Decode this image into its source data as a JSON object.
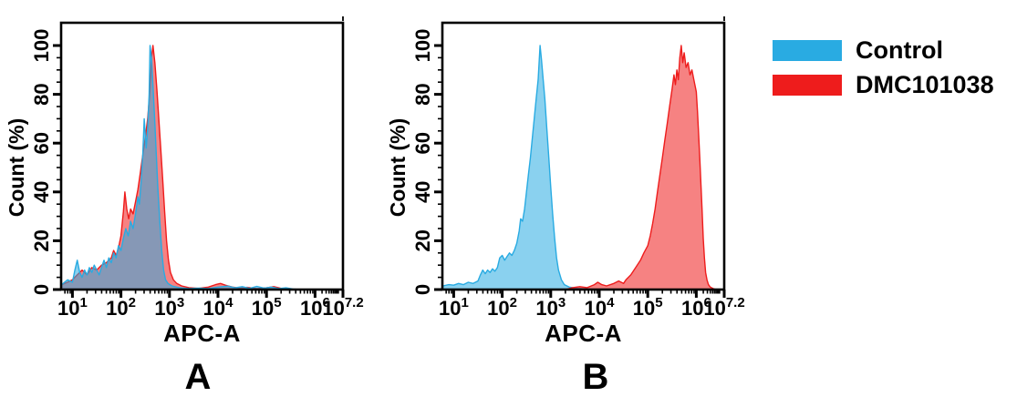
{
  "figure": {
    "background": "#ffffff",
    "panels": [
      {
        "label": "A"
      },
      {
        "label": "B"
      }
    ]
  },
  "legend": {
    "position": "top-right",
    "items": [
      {
        "label": "Control",
        "color": "#29ABE2",
        "swatch": "blue-rectangle"
      },
      {
        "label": "DMC101038",
        "color": "#EE1C1C",
        "swatch": "red-rectangle"
      }
    ]
  },
  "chart_data": [
    {
      "type": "area",
      "panel": "A",
      "title": "",
      "xlabel": "APC-A",
      "ylabel": "Count  (%)",
      "x_scale": "log10",
      "xlim_log": [
        0.78,
        7.2
      ],
      "ylim": [
        0,
        100
      ],
      "grid": false,
      "x_ticks": [
        {
          "log": 1,
          "label_base": "10",
          "label_exp": "1"
        },
        {
          "log": 2,
          "label_base": "10",
          "label_exp": "2"
        },
        {
          "log": 3,
          "label_base": "10",
          "label_exp": "3"
        },
        {
          "log": 4,
          "label_base": "10",
          "label_exp": "4"
        },
        {
          "log": 5,
          "label_base": "10",
          "label_exp": "5"
        },
        {
          "log": 6,
          "label_base": "10",
          "label_exp": "6"
        },
        {
          "log": 7.2,
          "label_base": "10",
          "label_exp": "7.2"
        }
      ],
      "y_ticks": [
        {
          "value": 0,
          "label": "0"
        },
        {
          "value": 20,
          "label": "20"
        },
        {
          "value": 40,
          "label": "40"
        },
        {
          "value": 60,
          "label": "60"
        },
        {
          "value": 80,
          "label": "80"
        },
        {
          "value": 100,
          "label": "100"
        }
      ],
      "series": [
        {
          "name": "DMC101038",
          "color": "#EE1C1C",
          "fill_opacity": 0.55,
          "points_logx_pct": [
            [
              0.78,
              2
            ],
            [
              0.9,
              3
            ],
            [
              1.0,
              4
            ],
            [
              1.1,
              6
            ],
            [
              1.2,
              8
            ],
            [
              1.3,
              6
            ],
            [
              1.4,
              9
            ],
            [
              1.5,
              8
            ],
            [
              1.6,
              10
            ],
            [
              1.7,
              11
            ],
            [
              1.8,
              13
            ],
            [
              1.85,
              16
            ],
            [
              1.9,
              14
            ],
            [
              1.95,
              17
            ],
            [
              2.0,
              22
            ],
            [
              2.05,
              32
            ],
            [
              2.08,
              40
            ],
            [
              2.12,
              33
            ],
            [
              2.16,
              29
            ],
            [
              2.2,
              33
            ],
            [
              2.25,
              31
            ],
            [
              2.3,
              36
            ],
            [
              2.35,
              41
            ],
            [
              2.4,
              48
            ],
            [
              2.45,
              55
            ],
            [
              2.5,
              62
            ],
            [
              2.55,
              70
            ],
            [
              2.6,
              82
            ],
            [
              2.63,
              95
            ],
            [
              2.66,
              100
            ],
            [
              2.7,
              93
            ],
            [
              2.74,
              82
            ],
            [
              2.78,
              70
            ],
            [
              2.82,
              58
            ],
            [
              2.86,
              45
            ],
            [
              2.9,
              32
            ],
            [
              2.94,
              20
            ],
            [
              2.98,
              12
            ],
            [
              3.02,
              7
            ],
            [
              3.08,
              4
            ],
            [
              3.15,
              2.5
            ],
            [
              3.25,
              1.5
            ],
            [
              3.4,
              0.8
            ],
            [
              3.6,
              0.5
            ],
            [
              3.8,
              1
            ],
            [
              3.95,
              2
            ],
            [
              4.05,
              2.5
            ],
            [
              4.15,
              1.8
            ],
            [
              4.3,
              1
            ],
            [
              4.45,
              0.6
            ],
            [
              4.6,
              0.9
            ],
            [
              4.8,
              0.4
            ],
            [
              5.0,
              0.7
            ],
            [
              5.15,
              1.2
            ],
            [
              5.3,
              0.5
            ],
            [
              5.5,
              0
            ],
            [
              7.2,
              0
            ]
          ]
        },
        {
          "name": "Control",
          "color": "#29ABE2",
          "fill_opacity": 0.55,
          "points_logx_pct": [
            [
              0.78,
              2
            ],
            [
              0.9,
              4
            ],
            [
              1.0,
              3
            ],
            [
              1.05,
              8
            ],
            [
              1.1,
              12
            ],
            [
              1.15,
              7
            ],
            [
              1.2,
              5
            ],
            [
              1.25,
              8
            ],
            [
              1.3,
              6
            ],
            [
              1.35,
              9
            ],
            [
              1.4,
              7
            ],
            [
              1.45,
              10
            ],
            [
              1.5,
              8
            ],
            [
              1.55,
              6
            ],
            [
              1.6,
              9
            ],
            [
              1.65,
              12
            ],
            [
              1.7,
              9
            ],
            [
              1.75,
              13
            ],
            [
              1.8,
              11
            ],
            [
              1.85,
              15
            ],
            [
              1.9,
              13
            ],
            [
              1.95,
              18
            ],
            [
              2.0,
              16
            ],
            [
              2.05,
              21
            ],
            [
              2.1,
              25
            ],
            [
              2.15,
              22
            ],
            [
              2.2,
              28
            ],
            [
              2.25,
              25
            ],
            [
              2.3,
              31
            ],
            [
              2.35,
              38
            ],
            [
              2.38,
              35
            ],
            [
              2.42,
              45
            ],
            [
              2.45,
              55
            ],
            [
              2.48,
              70
            ],
            [
              2.5,
              64
            ],
            [
              2.52,
              58
            ],
            [
              2.55,
              66
            ],
            [
              2.58,
              80
            ],
            [
              2.6,
              100
            ],
            [
              2.63,
              95
            ],
            [
              2.66,
              84
            ],
            [
              2.7,
              68
            ],
            [
              2.73,
              55
            ],
            [
              2.76,
              42
            ],
            [
              2.8,
              28
            ],
            [
              2.84,
              16
            ],
            [
              2.88,
              8
            ],
            [
              2.92,
              4
            ],
            [
              2.97,
              2.5
            ],
            [
              3.05,
              1.5
            ],
            [
              3.2,
              0.8
            ],
            [
              3.4,
              0.4
            ],
            [
              3.6,
              0.6
            ],
            [
              3.8,
              0.4
            ],
            [
              4.0,
              1
            ],
            [
              4.2,
              1.4
            ],
            [
              4.35,
              0.7
            ],
            [
              4.5,
              1.2
            ],
            [
              4.65,
              0.5
            ],
            [
              4.8,
              1.3
            ],
            [
              4.95,
              0.6
            ],
            [
              5.1,
              1
            ],
            [
              5.25,
              0.4
            ],
            [
              5.4,
              0.7
            ],
            [
              5.55,
              0.2
            ],
            [
              5.7,
              0
            ],
            [
              7.2,
              0
            ]
          ]
        }
      ]
    },
    {
      "type": "area",
      "panel": "B",
      "title": "",
      "xlabel": "APC-A",
      "ylabel": "Count  (%)",
      "x_scale": "log10",
      "xlim_log": [
        0.78,
        7.2
      ],
      "ylim": [
        0,
        100
      ],
      "grid": false,
      "x_ticks": [
        {
          "log": 1,
          "label_base": "10",
          "label_exp": "1"
        },
        {
          "log": 2,
          "label_base": "10",
          "label_exp": "2"
        },
        {
          "log": 3,
          "label_base": "10",
          "label_exp": "3"
        },
        {
          "log": 4,
          "label_base": "10",
          "label_exp": "4"
        },
        {
          "log": 5,
          "label_base": "10",
          "label_exp": "5"
        },
        {
          "log": 6,
          "label_base": "10",
          "label_exp": "6"
        },
        {
          "log": 7.2,
          "label_base": "10",
          "label_exp": "7.2"
        }
      ],
      "y_ticks": [
        {
          "value": 0,
          "label": "0"
        },
        {
          "value": 20,
          "label": "20"
        },
        {
          "value": 40,
          "label": "40"
        },
        {
          "value": 60,
          "label": "60"
        },
        {
          "value": 80,
          "label": "80"
        },
        {
          "value": 100,
          "label": "100"
        }
      ],
      "series": [
        {
          "name": "Control",
          "color": "#29ABE2",
          "fill_opacity": 0.55,
          "points_logx_pct": [
            [
              0.78,
              1.5
            ],
            [
              0.9,
              2
            ],
            [
              1.0,
              1.8
            ],
            [
              1.1,
              2.5
            ],
            [
              1.2,
              2
            ],
            [
              1.3,
              3
            ],
            [
              1.4,
              2.5
            ],
            [
              1.5,
              3.5
            ],
            [
              1.55,
              6
            ],
            [
              1.6,
              8
            ],
            [
              1.65,
              6.5
            ],
            [
              1.7,
              8
            ],
            [
              1.75,
              7
            ],
            [
              1.8,
              8.5
            ],
            [
              1.85,
              7.5
            ],
            [
              1.9,
              9
            ],
            [
              1.95,
              13
            ],
            [
              2.0,
              14
            ],
            [
              2.05,
              12
            ],
            [
              2.1,
              13.5
            ],
            [
              2.15,
              15
            ],
            [
              2.2,
              14
            ],
            [
              2.25,
              16
            ],
            [
              2.3,
              19
            ],
            [
              2.35,
              24
            ],
            [
              2.38,
              29
            ],
            [
              2.42,
              28
            ],
            [
              2.46,
              33
            ],
            [
              2.5,
              40
            ],
            [
              2.54,
              47
            ],
            [
              2.58,
              54
            ],
            [
              2.62,
              62
            ],
            [
              2.66,
              70
            ],
            [
              2.7,
              78
            ],
            [
              2.74,
              86
            ],
            [
              2.78,
              100
            ],
            [
              2.81,
              94
            ],
            [
              2.84,
              87
            ],
            [
              2.88,
              78
            ],
            [
              2.92,
              66
            ],
            [
              2.96,
              54
            ],
            [
              3.0,
              42
            ],
            [
              3.04,
              31
            ],
            [
              3.08,
              21
            ],
            [
              3.12,
              13
            ],
            [
              3.16,
              8
            ],
            [
              3.22,
              4
            ],
            [
              3.28,
              2
            ],
            [
              3.38,
              1
            ],
            [
              3.55,
              0.5
            ],
            [
              3.8,
              0.2
            ],
            [
              4.0,
              0
            ],
            [
              7.2,
              0
            ]
          ]
        },
        {
          "name": "DMC101038",
          "color": "#EE1C1C",
          "fill_opacity": 0.55,
          "points_logx_pct": [
            [
              3.3,
              0
            ],
            [
              3.45,
              0.8
            ],
            [
              3.6,
              1.2
            ],
            [
              3.75,
              0.8
            ],
            [
              3.9,
              2
            ],
            [
              3.97,
              3
            ],
            [
              4.05,
              2
            ],
            [
              4.15,
              1.5
            ],
            [
              4.3,
              2.5
            ],
            [
              4.4,
              3.5
            ],
            [
              4.5,
              2.5
            ],
            [
              4.55,
              4
            ],
            [
              4.65,
              6
            ],
            [
              4.75,
              9
            ],
            [
              4.85,
              12
            ],
            [
              4.92,
              15
            ],
            [
              5.0,
              18
            ],
            [
              5.05,
              22
            ],
            [
              5.1,
              27
            ],
            [
              5.15,
              33
            ],
            [
              5.2,
              40
            ],
            [
              5.25,
              47
            ],
            [
              5.3,
              54
            ],
            [
              5.35,
              61
            ],
            [
              5.4,
              68
            ],
            [
              5.45,
              75
            ],
            [
              5.5,
              82
            ],
            [
              5.54,
              88
            ],
            [
              5.57,
              84
            ],
            [
              5.6,
              90
            ],
            [
              5.63,
              86
            ],
            [
              5.66,
              95
            ],
            [
              5.69,
              100
            ],
            [
              5.72,
              93
            ],
            [
              5.75,
              97
            ],
            [
              5.79,
              91
            ],
            [
              5.83,
              93
            ],
            [
              5.87,
              88
            ],
            [
              5.91,
              90
            ],
            [
              5.95,
              86
            ],
            [
              6.0,
              81
            ],
            [
              6.05,
              73
            ],
            [
              6.1,
              64
            ],
            [
              6.15,
              54
            ],
            [
              6.2,
              43
            ],
            [
              6.25,
              32
            ],
            [
              6.3,
              21
            ],
            [
              6.35,
              13
            ],
            [
              6.4,
              7
            ],
            [
              6.46,
              4
            ],
            [
              6.52,
              2
            ],
            [
              6.6,
              1
            ],
            [
              6.72,
              0.4
            ],
            [
              6.85,
              0
            ],
            [
              7.2,
              0
            ]
          ]
        }
      ]
    }
  ]
}
